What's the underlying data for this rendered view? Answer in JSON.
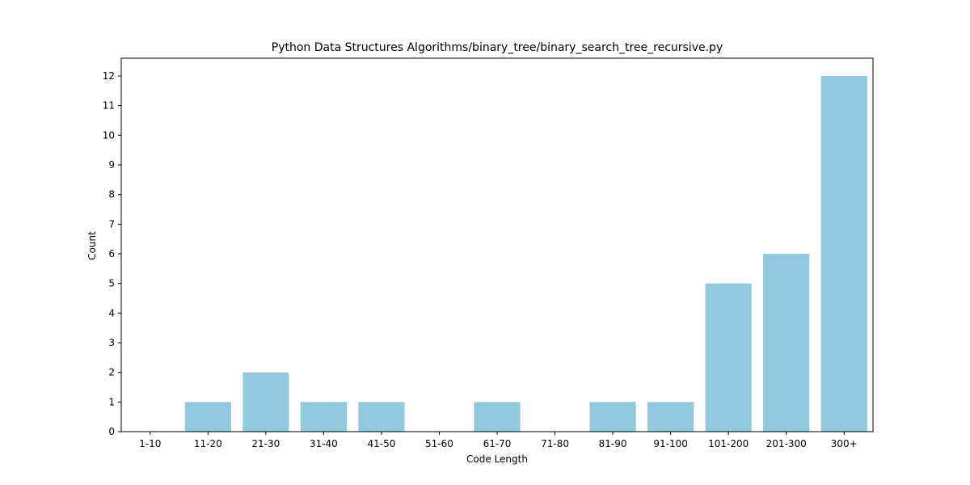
{
  "chart_data": {
    "type": "bar",
    "title": "Python Data Structures Algorithms/binary_tree/binary_search_tree_recursive.py",
    "xlabel": "Code Length",
    "ylabel": "Count",
    "categories": [
      "1-10",
      "11-20",
      "21-30",
      "31-40",
      "41-50",
      "51-60",
      "61-70",
      "71-80",
      "81-90",
      "91-100",
      "101-200",
      "201-300",
      "300+"
    ],
    "values": [
      0,
      1,
      2,
      1,
      1,
      0,
      1,
      0,
      1,
      1,
      5,
      6,
      12
    ],
    "ylim": [
      0,
      12.6
    ],
    "yticks": [
      0,
      1,
      2,
      3,
      4,
      5,
      6,
      7,
      8,
      9,
      10,
      11,
      12
    ],
    "bar_color": "#92c9df",
    "grid": false,
    "legend": "none"
  }
}
